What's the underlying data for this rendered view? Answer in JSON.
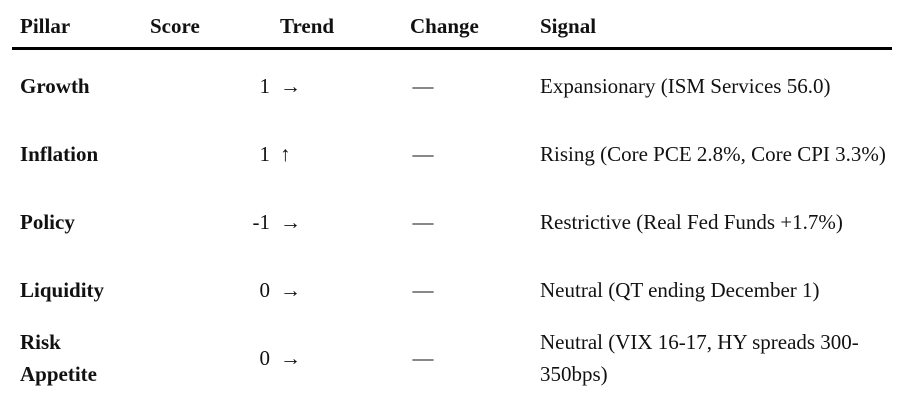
{
  "table": {
    "header": [
      "Pillar",
      "Score",
      "Trend",
      "Change",
      "Signal"
    ],
    "rows": [
      [
        "Growth",
        "1",
        "→",
        "—",
        "Expansionary (ISM Services 56.0)"
      ],
      [
        "Inflation",
        "1",
        "↑",
        "—",
        "Rising (Core PCE 2.8%, Core CPI 3.3%)"
      ],
      [
        "Policy",
        "-1",
        "→",
        "—",
        "Restrictive (Real Fed Funds +1.7%)"
      ],
      [
        "Liquidity",
        "0",
        "→",
        "—",
        "Neutral (QT ending December 1)"
      ],
      [
        "Risk Appetite",
        "0",
        "→",
        "—",
        "Neutral (VIX 16-17, HY spreads 300-350bps)"
      ]
    ]
  }
}
